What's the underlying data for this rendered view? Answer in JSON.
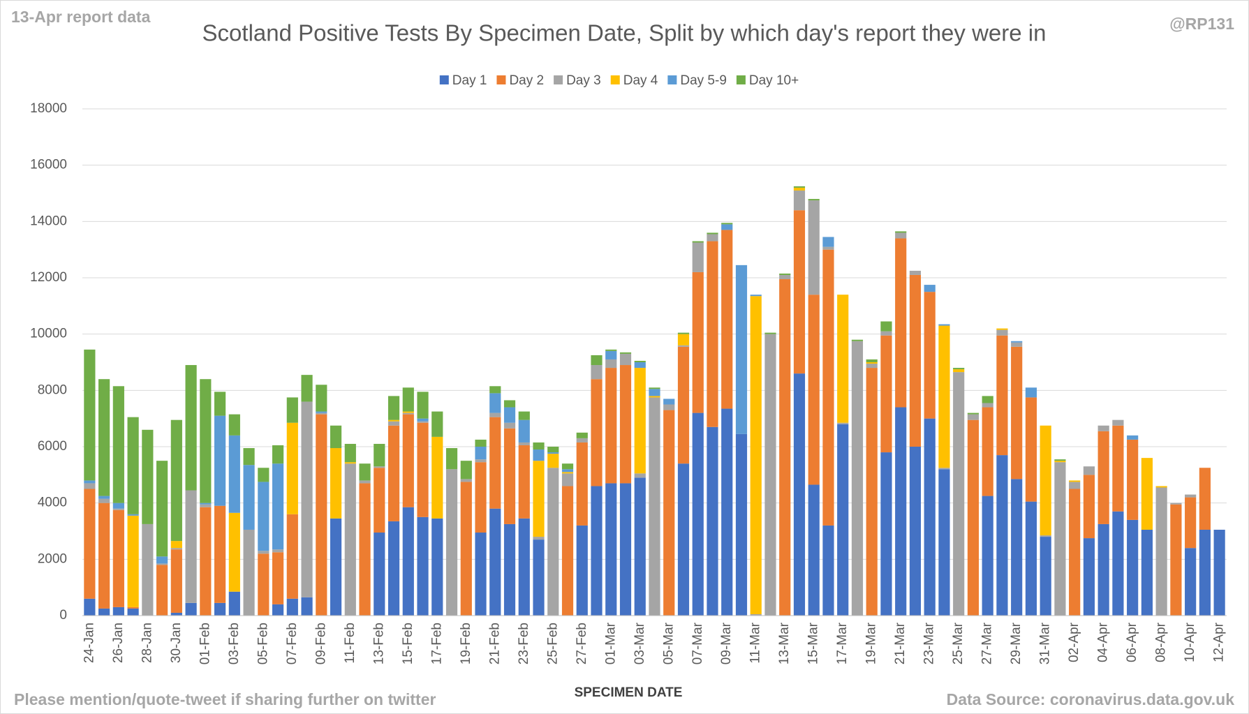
{
  "chart_data": {
    "type": "stacked_bar",
    "title": "Scotland Positive Tests By Specimen Date, Split by which day's report they were in",
    "report_label": "13-Apr report data",
    "handle": "@RP131",
    "x_label": "SPECIMEN DATE",
    "footer_left": "Please mention/quote-tweet if sharing further on twitter",
    "footer_right": "Data Source: coronavirus.data.gov.uk",
    "legend": "top",
    "grid": true,
    "ylim": [
      0,
      18000
    ],
    "yticks": [
      0,
      2000,
      4000,
      6000,
      8000,
      10000,
      12000,
      14000,
      16000,
      18000
    ],
    "categories": [
      "24-Jan",
      null,
      "26-Jan",
      null,
      "28-Jan",
      null,
      "30-Jan",
      null,
      "01-Feb",
      null,
      "03-Feb",
      null,
      "05-Feb",
      null,
      "07-Feb",
      null,
      "09-Feb",
      null,
      "11-Feb",
      null,
      "13-Feb",
      null,
      "15-Feb",
      null,
      "17-Feb",
      null,
      "19-Feb",
      null,
      "21-Feb",
      null,
      "23-Feb",
      null,
      "25-Feb",
      null,
      "27-Feb",
      null,
      "01-Mar",
      null,
      "03-Mar",
      null,
      "05-Mar",
      null,
      "07-Mar",
      null,
      "09-Mar",
      null,
      "11-Mar",
      null,
      "13-Mar",
      null,
      "15-Mar",
      null,
      "17-Mar",
      null,
      "19-Mar",
      null,
      "21-Mar",
      null,
      "23-Mar",
      null,
      "25-Mar",
      null,
      "27-Mar",
      null,
      "29-Mar",
      null,
      "31-Mar",
      null,
      "02-Apr",
      null,
      "04-Apr",
      null,
      "06-Apr",
      null,
      "08-Apr",
      null,
      "10-Apr",
      null,
      "12-Apr"
    ],
    "series": [
      {
        "name": "Day 1",
        "color": "#4472c4",
        "values": [
          600,
          250,
          300,
          250,
          0,
          0,
          100,
          450,
          0,
          450,
          850,
          0,
          0,
          400,
          600,
          650,
          0,
          3450,
          0,
          0,
          2950,
          3350,
          3850,
          3500,
          3450,
          0,
          0,
          2950,
          3800,
          3250,
          3450,
          2700,
          0,
          0,
          3200,
          4600,
          4700,
          4700,
          4900,
          0,
          0,
          5400,
          7200,
          6700,
          7350,
          6450,
          0,
          0,
          0,
          8600,
          4650,
          3200,
          6800,
          0,
          0,
          5800,
          7400,
          6000,
          7000,
          5200,
          0,
          0,
          4250,
          5700,
          4850,
          4050,
          2800,
          0,
          0,
          2750,
          3250,
          3700,
          3400,
          3050,
          0,
          0,
          2400,
          3050,
          3050
        ]
      },
      {
        "name": "Day 2",
        "color": "#ed7d31",
        "values": [
          3900,
          3750,
          3450,
          50,
          0,
          1800,
          2250,
          0,
          3850,
          3450,
          0,
          0,
          2200,
          1850,
          3000,
          0,
          7150,
          0,
          0,
          4700,
          2300,
          3400,
          3300,
          3350,
          0,
          0,
          4750,
          2500,
          3250,
          3400,
          2600,
          0,
          0,
          4600,
          2950,
          3800,
          4100,
          4200,
          0,
          0,
          7300,
          4150,
          5000,
          6600,
          6350,
          0,
          0,
          0,
          11950,
          5800,
          6750,
          9800,
          0,
          0,
          8800,
          4150,
          6000,
          6100,
          4500,
          0,
          0,
          6950,
          3150,
          4250,
          4700,
          3700,
          0,
          0,
          4500,
          2250,
          3300,
          3050,
          2850,
          0,
          0,
          3950,
          1800,
          2200,
          0
        ]
      },
      {
        "name": "Day 3",
        "color": "#a5a5a5",
        "values": [
          200,
          150,
          50,
          0,
          3250,
          50,
          50,
          4000,
          100,
          0,
          0,
          3050,
          100,
          100,
          0,
          6950,
          50,
          0,
          5400,
          100,
          50,
          150,
          50,
          50,
          0,
          5200,
          100,
          100,
          150,
          200,
          100,
          100,
          5250,
          450,
          150,
          500,
          300,
          400,
          150,
          7750,
          200,
          50,
          1050,
          250,
          0,
          0,
          50,
          10000,
          150,
          700,
          3350,
          100,
          50,
          9750,
          150,
          150,
          200,
          150,
          0,
          50,
          8650,
          200,
          150,
          200,
          150,
          0,
          50,
          5450,
          250,
          300,
          200,
          200,
          0,
          0,
          4550,
          50,
          100,
          0,
          0
        ]
      },
      {
        "name": "Day 4",
        "color": "#ffc000",
        "values": [
          0,
          0,
          0,
          3250,
          0,
          0,
          250,
          0,
          0,
          0,
          2800,
          0,
          0,
          0,
          3250,
          0,
          0,
          2500,
          50,
          0,
          0,
          50,
          50,
          0,
          2900,
          0,
          0,
          0,
          0,
          0,
          0,
          2700,
          500,
          50,
          0,
          0,
          0,
          0,
          3750,
          50,
          0,
          400,
          0,
          0,
          0,
          0,
          11300,
          0,
          0,
          100,
          0,
          0,
          4550,
          0,
          50,
          0,
          0,
          0,
          0,
          5050,
          100,
          0,
          0,
          50,
          0,
          0,
          3900,
          50,
          50,
          0,
          0,
          0,
          0,
          2550,
          50,
          0,
          0,
          0,
          0
        ]
      },
      {
        "name": "Day 5-9",
        "color": "#5b9bd5",
        "values": [
          100,
          100,
          200,
          50,
          0,
          250,
          0,
          0,
          50,
          3200,
          2750,
          2300,
          2450,
          3050,
          0,
          0,
          50,
          0,
          0,
          0,
          0,
          0,
          0,
          100,
          0,
          0,
          0,
          450,
          700,
          550,
          800,
          400,
          50,
          100,
          0,
          0,
          300,
          0,
          200,
          250,
          200,
          0,
          0,
          0,
          200,
          6000,
          50,
          0,
          0,
          0,
          0,
          350,
          0,
          0,
          0,
          0,
          0,
          0,
          250,
          50,
          0,
          0,
          0,
          0,
          50,
          350,
          0,
          0,
          0,
          0,
          0,
          0,
          150,
          0,
          0,
          0,
          0,
          0,
          0
        ]
      },
      {
        "name": "Day 10+",
        "color": "#70ad47",
        "values": [
          4650,
          4150,
          4150,
          3450,
          3350,
          3400,
          4300,
          4450,
          4400,
          850,
          750,
          600,
          500,
          650,
          900,
          950,
          950,
          800,
          650,
          600,
          800,
          850,
          850,
          950,
          900,
          750,
          650,
          250,
          250,
          250,
          300,
          250,
          200,
          200,
          200,
          350,
          50,
          50,
          50,
          50,
          0,
          50,
          50,
          50,
          50,
          0,
          0,
          50,
          50,
          50,
          50,
          0,
          0,
          50,
          100,
          350,
          50,
          0,
          0,
          0,
          50,
          50,
          250,
          0,
          0,
          0,
          0,
          50,
          0,
          0,
          0,
          0,
          0,
          0,
          0,
          0,
          0,
          0,
          0
        ]
      }
    ]
  }
}
